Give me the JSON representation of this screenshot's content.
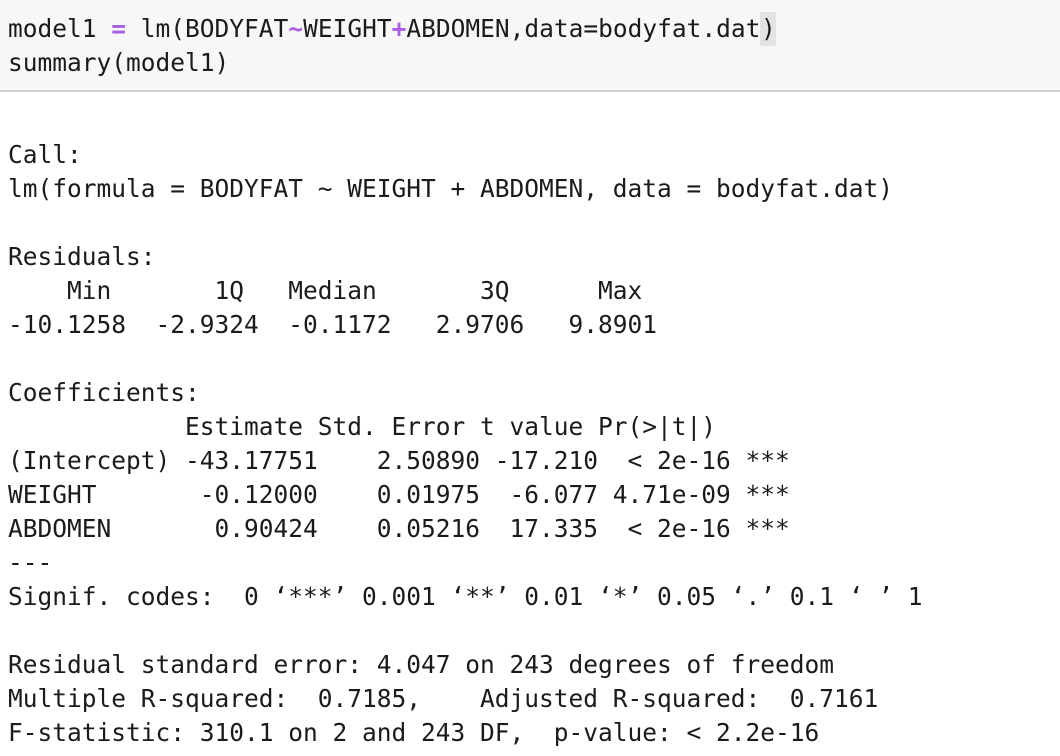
{
  "code_cell": {
    "line1": {
      "lhs": "model1 ",
      "assign": "=",
      "call_open": " lm(BODYFAT",
      "tilde": "~",
      "var2": "WEIGHT",
      "plus": "+",
      "rest": "ABDOMEN,data=bodyfat.dat",
      "close": ")"
    },
    "line2": "summary(model1)"
  },
  "output": {
    "call_header": "Call:",
    "call_formula": "lm(formula = BODYFAT ~ WEIGHT + ABDOMEN, data = bodyfat.dat)",
    "residuals_header": "Residuals:",
    "residuals_labels": "    Min       1Q   Median       3Q      Max ",
    "residuals_values": "-10.1258  -2.9324  -0.1172   2.9706   9.8901 ",
    "coefficients_header": "Coefficients:",
    "coef_header_row": "            Estimate Std. Error t value Pr(>|t|)    ",
    "coef_rows": [
      "(Intercept) -43.17751    2.50890 -17.210  < 2e-16 ***",
      "WEIGHT       -0.12000    0.01975  -6.077 4.71e-09 ***",
      "ABDOMEN       0.90424    0.05216  17.335  < 2e-16 ***"
    ],
    "separator": "---",
    "signif_codes": "Signif. codes:  0 ‘***’ 0.001 ‘**’ 0.01 ‘*’ 0.05 ‘.’ 0.1 ‘ ’ 1",
    "rse_line": "Residual standard error: 4.047 on 243 degrees of freedom",
    "r2_line": "Multiple R-squared:  0.7185,\tAdjusted R-squared:  0.7161 ",
    "f_line": "F-statistic: 310.1 on 2 and 243 DF,  p-value: < 2.2e-16"
  },
  "colors": {
    "operator": "#a85fe6",
    "code_background": "#f7f7f7",
    "text": "#1b1b1b"
  }
}
